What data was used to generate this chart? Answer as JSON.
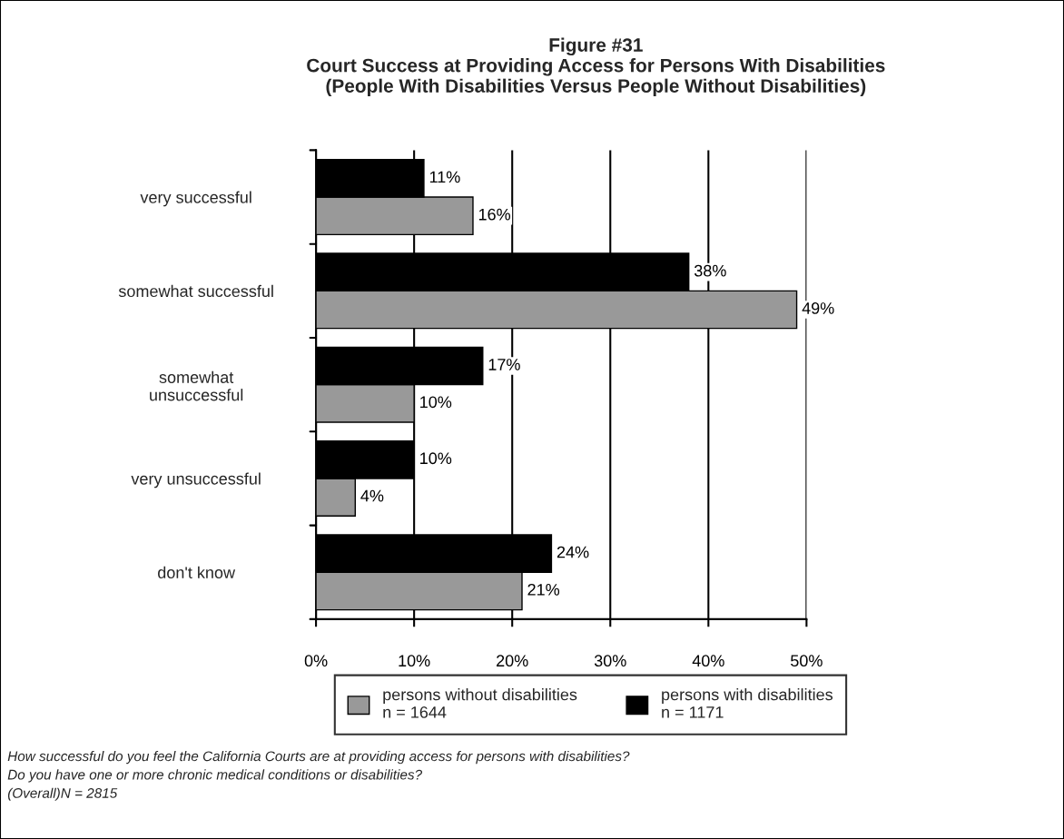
{
  "chart_data": {
    "type": "bar",
    "orientation": "horizontal",
    "title": "Figure #31\nCourt Success at Providing Access for Persons With Disabilities\n(People With Disabilities Versus People Without Disabilities)",
    "categories": [
      "very successful",
      "somewhat successful",
      "somewhat\nunsuccessful",
      "very unsuccessful",
      "don't know"
    ],
    "series": [
      {
        "name": "persons without disabilities\nn = 1644",
        "color": "#999999",
        "values": [
          16,
          49,
          10,
          4,
          21
        ],
        "value_labels": [
          "16%",
          "49%",
          "10%",
          "4%",
          "21%"
        ]
      },
      {
        "name": "persons with disabilities\nn = 1171",
        "color": "#000000",
        "values": [
          11,
          38,
          17,
          10,
          24
        ],
        "value_labels": [
          "11%",
          "38%",
          "17%",
          "10%",
          "24%"
        ]
      }
    ],
    "xlim": [
      0,
      50
    ],
    "xticks": [
      {
        "value": 0,
        "label": "0%"
      },
      {
        "value": 10,
        "label": "10%"
      },
      {
        "value": 20,
        "label": "20%"
      },
      {
        "value": 30,
        "label": "30%"
      },
      {
        "value": 40,
        "label": "40%"
      },
      {
        "value": 50,
        "label": "50%"
      }
    ],
    "grid": "x",
    "legend": "bottom",
    "annotations": [
      "How successful do you feel the California Courts are at providing access for persons with disabilities?",
      "Do you have one or more chronic medical conditions or disabilities?",
      "(Overall)N = 2815"
    ]
  }
}
